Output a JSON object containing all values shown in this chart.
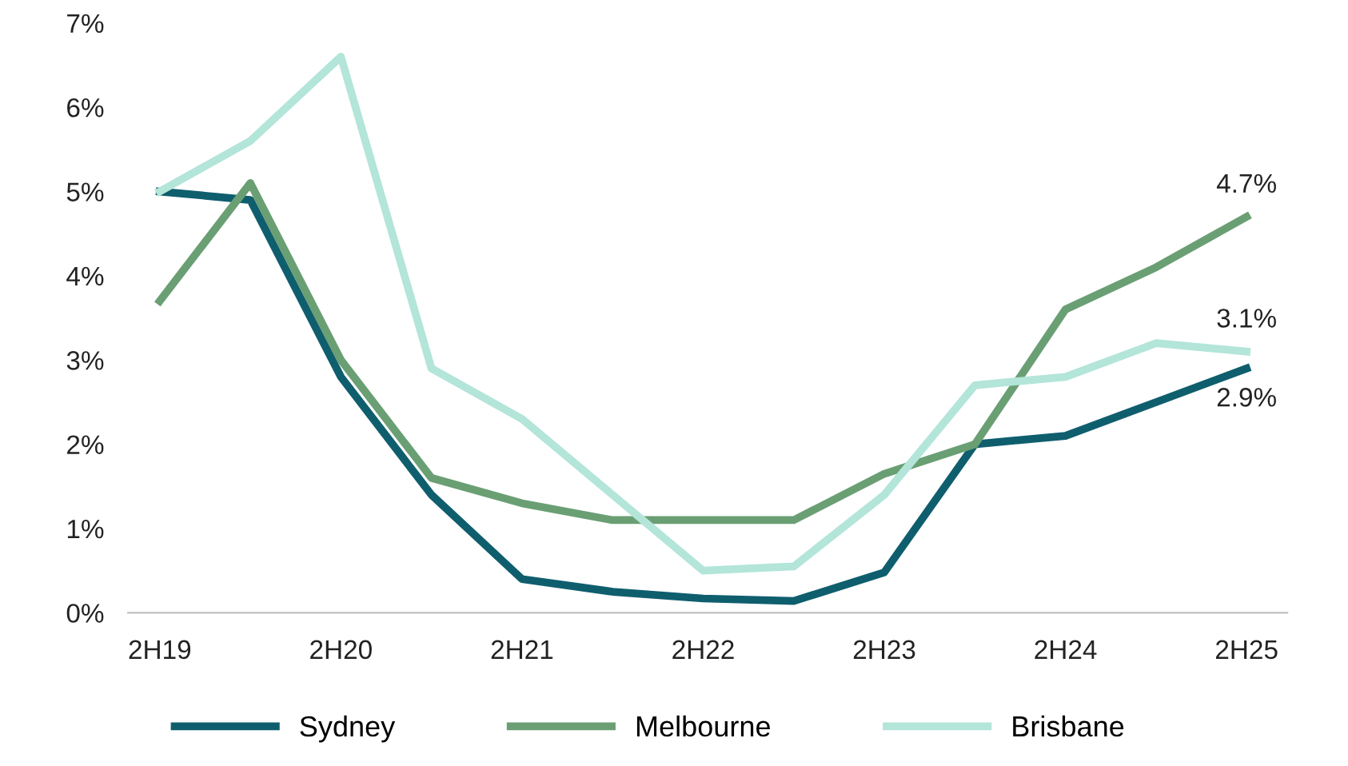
{
  "chart_data": {
    "type": "line",
    "categories": [
      "2H19",
      null,
      "2H20",
      null,
      "2H21",
      null,
      "2H22",
      null,
      "2H23",
      null,
      "2H24",
      null,
      "2H25"
    ],
    "series": [
      {
        "name": "Sydney",
        "color": "#0f5e6e",
        "values": [
          5.0,
          4.9,
          2.8,
          1.4,
          0.4,
          0.25,
          0.17,
          0.14,
          0.48,
          2.0,
          2.1,
          2.5,
          2.9
        ],
        "value_labels": [
          null,
          null,
          null,
          null,
          null,
          null,
          null,
          null,
          null,
          null,
          null,
          null,
          "2.9%"
        ]
      },
      {
        "name": "Melbourne",
        "color": "#6a9f74",
        "values": [
          3.7,
          5.1,
          3.0,
          1.6,
          1.3,
          1.1,
          1.1,
          1.1,
          1.65,
          2.0,
          3.6,
          4.1,
          4.7
        ],
        "value_labels": [
          null,
          null,
          null,
          null,
          null,
          null,
          null,
          null,
          null,
          null,
          null,
          null,
          "4.7%"
        ]
      },
      {
        "name": "Brisbane",
        "color": "#b3e5d9",
        "values": [
          5.0,
          5.6,
          6.6,
          2.9,
          2.3,
          1.4,
          0.5,
          0.55,
          1.4,
          2.7,
          2.8,
          3.2,
          3.1
        ],
        "value_labels": [
          null,
          null,
          null,
          null,
          null,
          null,
          null,
          null,
          null,
          null,
          null,
          null,
          "3.1%"
        ]
      }
    ],
    "ylim": [
      0,
      7
    ],
    "yticks": [
      {
        "value": 0,
        "label": "0%"
      },
      {
        "value": 1,
        "label": "1%"
      },
      {
        "value": 2,
        "label": "2%"
      },
      {
        "value": 3,
        "label": "3%"
      },
      {
        "value": 4,
        "label": "4%"
      },
      {
        "value": 5,
        "label": "5%"
      },
      {
        "value": 6,
        "label": "6%"
      },
      {
        "value": 7,
        "label": "7%"
      }
    ],
    "grid": false,
    "legend": "bottom",
    "marker": "none",
    "line_style": "solid"
  }
}
